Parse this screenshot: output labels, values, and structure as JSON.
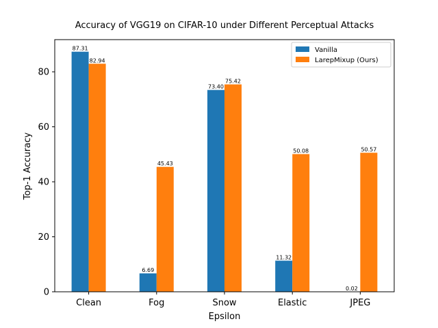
{
  "chart_data": {
    "type": "bar",
    "title": "Accuracy of VGG19 on CIFAR-10 under Different Perceptual Attacks",
    "xlabel": "Epsilon",
    "ylabel": "Top-1 Accuracy",
    "categories": [
      "Clean",
      "Fog",
      "Snow",
      "Elastic",
      "JPEG"
    ],
    "series": [
      {
        "name": "Vanilla",
        "color": "#1f77b4",
        "values": [
          87.31,
          6.69,
          73.4,
          11.32,
          0.02
        ],
        "labels": [
          "87.31",
          "6.69",
          "73.40",
          "11.32",
          "0.02"
        ]
      },
      {
        "name": "LarepMixup (Ours)",
        "color": "#ff7f0e",
        "values": [
          82.94,
          45.43,
          75.42,
          50.08,
          50.57
        ],
        "labels": [
          "82.94",
          "45.43",
          "75.42",
          "50.08",
          "50.57"
        ]
      }
    ],
    "ylim": [
      0,
      91.7
    ],
    "yticks": [
      0,
      20,
      40,
      60,
      80
    ],
    "ytick_labels": [
      "0",
      "20",
      "40",
      "60",
      "80"
    ],
    "grid": false,
    "legend_position": "top-right"
  }
}
